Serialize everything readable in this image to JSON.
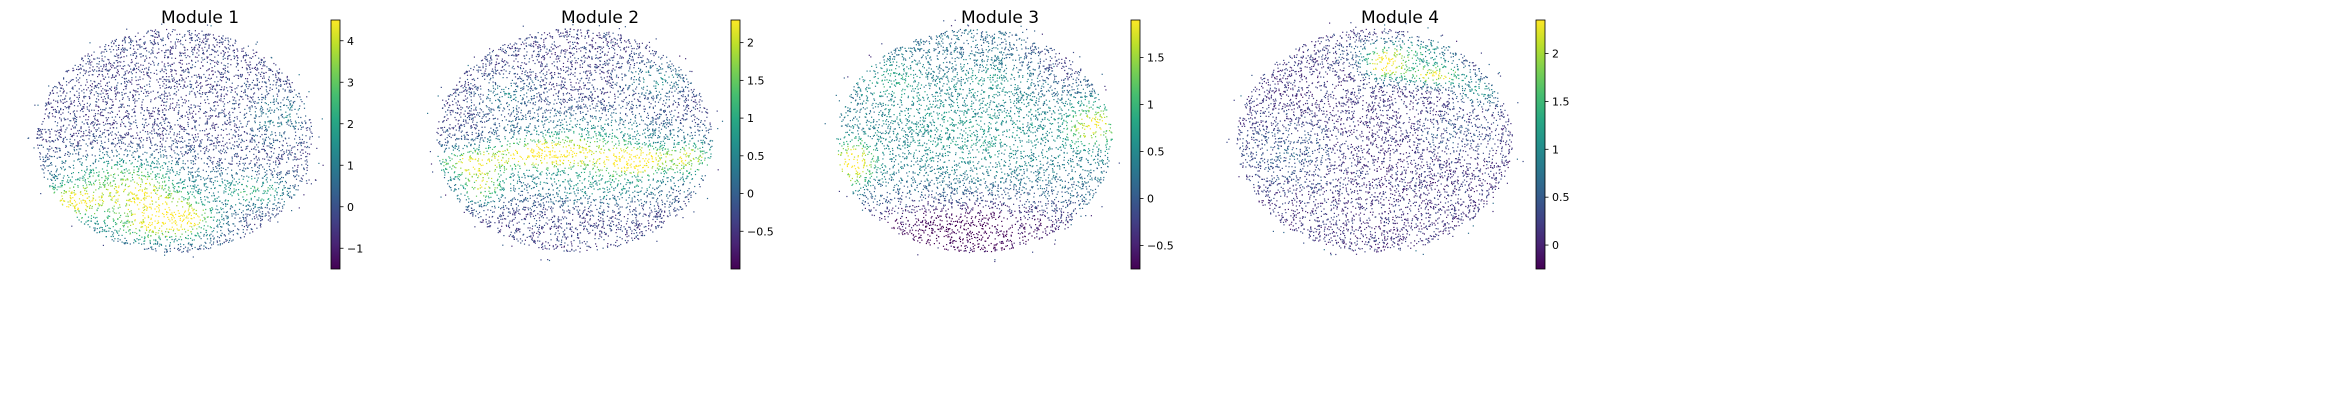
{
  "chart_data": [
    {
      "type": "scatter",
      "title": "Module 1",
      "xlabel": "",
      "ylabel": "",
      "colormap": "viridis",
      "axes_visible": false,
      "colorbar": {
        "min": -1.5,
        "max": 4.5,
        "ticks": [
          -1,
          0,
          1,
          2,
          3,
          4
        ]
      },
      "background_level": -0.3,
      "hotspots": [
        {
          "x": 0.12,
          "y": 0.25,
          "sx": 0.09,
          "sy": 0.05,
          "value": 5.2
        },
        {
          "x": 0.38,
          "y": 0.27,
          "sx": 0.11,
          "sy": 0.06,
          "value": 4.3
        },
        {
          "x": 0.52,
          "y": 0.19,
          "sx": 0.09,
          "sy": 0.05,
          "value": 4.0
        },
        {
          "x": 0.42,
          "y": 0.14,
          "sx": 0.14,
          "sy": 0.05,
          "value": 3.0
        },
        {
          "x": 0.78,
          "y": 0.3,
          "sx": 0.1,
          "sy": 0.05,
          "value": 2.6
        },
        {
          "x": 0.3,
          "y": 0.38,
          "sx": 0.18,
          "sy": 0.06,
          "value": 2.2
        },
        {
          "x": 0.88,
          "y": 0.62,
          "sx": 0.08,
          "sy": 0.07,
          "value": 1.2
        }
      ]
    },
    {
      "type": "scatter",
      "title": "Module 2",
      "xlabel": "",
      "ylabel": "",
      "colormap": "viridis",
      "axes_visible": false,
      "colorbar": {
        "min": -1.0,
        "max": 2.3,
        "ticks": [
          -0.5,
          0.0,
          0.5,
          1.0,
          1.5,
          2.0
        ]
      },
      "background_level": -0.35,
      "hotspots": [
        {
          "x": 0.4,
          "y": 0.46,
          "sx": 0.13,
          "sy": 0.04,
          "value": 2.8
        },
        {
          "x": 0.72,
          "y": 0.43,
          "sx": 0.08,
          "sy": 0.04,
          "value": 2.9
        },
        {
          "x": 0.12,
          "y": 0.42,
          "sx": 0.09,
          "sy": 0.04,
          "value": 2.1
        },
        {
          "x": 0.92,
          "y": 0.44,
          "sx": 0.06,
          "sy": 0.05,
          "value": 1.9
        },
        {
          "x": 0.16,
          "y": 0.32,
          "sx": 0.06,
          "sy": 0.05,
          "value": 1.8
        },
        {
          "x": 0.55,
          "y": 0.52,
          "sx": 0.22,
          "sy": 0.08,
          "value": 0.9
        },
        {
          "x": 0.58,
          "y": 0.33,
          "sx": 0.22,
          "sy": 0.06,
          "value": 0.8
        },
        {
          "x": 0.8,
          "y": 0.78,
          "sx": 0.07,
          "sy": 0.05,
          "value": 0.7
        },
        {
          "x": 0.25,
          "y": 0.72,
          "sx": 0.07,
          "sy": 0.05,
          "value": 0.5
        }
      ]
    },
    {
      "type": "scatter",
      "title": "Module 3",
      "xlabel": "",
      "ylabel": "",
      "colormap": "viridis",
      "axes_visible": false,
      "colorbar": {
        "min": -0.75,
        "max": 1.9,
        "ticks": [
          -0.5,
          0.0,
          0.5,
          1.0,
          1.5
        ]
      },
      "background_level": 0.2,
      "hotspots": [
        {
          "x": 0.06,
          "y": 0.42,
          "sx": 0.05,
          "sy": 0.06,
          "value": 2.6
        },
        {
          "x": 0.93,
          "y": 0.58,
          "sx": 0.06,
          "sy": 0.06,
          "value": 2.0
        },
        {
          "x": 0.5,
          "y": 0.55,
          "sx": 0.28,
          "sy": 0.14,
          "value": 0.7
        },
        {
          "x": 0.2,
          "y": 0.78,
          "sx": 0.08,
          "sy": 0.06,
          "value": 0.8
        },
        {
          "x": 0.58,
          "y": 0.78,
          "sx": 0.1,
          "sy": 0.05,
          "value": 0.6
        },
        {
          "x": 0.45,
          "y": 0.12,
          "sx": 0.3,
          "sy": 0.1,
          "value": -1.1
        },
        {
          "x": 0.82,
          "y": 0.85,
          "sx": 0.1,
          "sy": 0.08,
          "value": -0.3
        }
      ]
    },
    {
      "type": "scatter",
      "title": "Module 4",
      "xlabel": "",
      "ylabel": "",
      "colormap": "viridis",
      "axes_visible": false,
      "colorbar": {
        "min": -0.25,
        "max": 2.35,
        "ticks": [
          0.0,
          0.5,
          1.0,
          1.5,
          2.0
        ]
      },
      "background_level": 0.15,
      "hotspots": [
        {
          "x": 0.54,
          "y": 0.84,
          "sx": 0.05,
          "sy": 0.04,
          "value": 2.7
        },
        {
          "x": 0.72,
          "y": 0.8,
          "sx": 0.07,
          "sy": 0.03,
          "value": 2.6
        },
        {
          "x": 0.62,
          "y": 0.9,
          "sx": 0.13,
          "sy": 0.04,
          "value": 1.4
        },
        {
          "x": 0.88,
          "y": 0.73,
          "sx": 0.06,
          "sy": 0.04,
          "value": 1.2
        },
        {
          "x": 0.18,
          "y": 0.46,
          "sx": 0.12,
          "sy": 0.1,
          "value": 0.55
        },
        {
          "x": 0.8,
          "y": 0.55,
          "sx": 0.1,
          "sy": 0.07,
          "value": 0.45
        }
      ]
    }
  ]
}
